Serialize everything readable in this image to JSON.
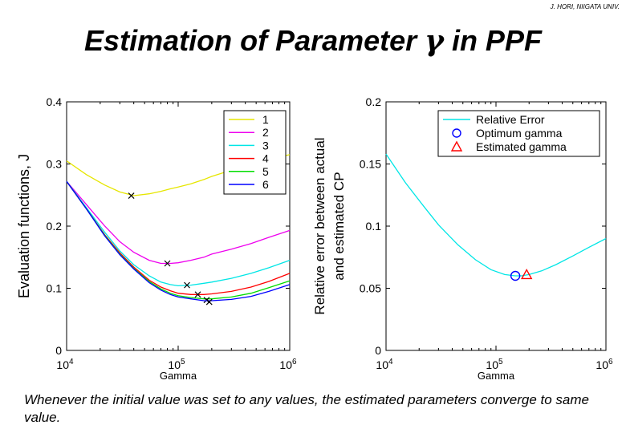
{
  "page": {
    "credit": "J. HORI, NIIGATA UNIV.",
    "title_prefix": "Estimation of Parameter ",
    "title_symbol": "γ",
    "title_suffix": " in PPF",
    "caption": "Whenever the initial value was set to any values, the estimated parameters converge to same value."
  },
  "colors": {
    "s1": "#e6e600",
    "s2": "#ee00ee",
    "s3": "#00e6e6",
    "s4": "#ff0000",
    "s5": "#00dd00",
    "s6": "#0000ff",
    "relative_error": "#00e6e6",
    "optimum": "#0000ff",
    "estimated": "#ff0000",
    "marker": "#000000"
  },
  "chart_data": [
    {
      "type": "line",
      "xscale": "log",
      "xlabel": "Gamma",
      "ylabel": "Evaluation functions, J",
      "xlim": [
        10000,
        1000000
      ],
      "ylim": [
        0,
        0.4
      ],
      "x_ticks": [
        {
          "value": 10000,
          "base": "10",
          "exp": "4"
        },
        {
          "value": 100000,
          "base": "10",
          "exp": "5"
        },
        {
          "value": 1000000,
          "base": "10",
          "exp": "6"
        }
      ],
      "y_ticks": [
        "0",
        "0.1",
        "0.2",
        "0.3",
        "0.4"
      ],
      "legend_position": "top-right",
      "x": [
        10000,
        15000,
        22000,
        30000,
        40000,
        55000,
        70000,
        85000,
        100000,
        130000,
        170000,
        200000,
        300000,
        450000,
        650000,
        1000000
      ],
      "series": [
        {
          "name": "1",
          "color_key": "s1",
          "values": [
            0.305,
            0.283,
            0.266,
            0.255,
            0.249,
            0.252,
            0.256,
            0.26,
            0.263,
            0.268,
            0.275,
            0.28,
            0.29,
            0.3,
            0.308,
            0.315
          ],
          "min_marker": {
            "x": 38000,
            "y": 0.249
          }
        },
        {
          "name": "2",
          "color_key": "s2",
          "values": [
            0.272,
            0.235,
            0.2,
            0.175,
            0.158,
            0.145,
            0.14,
            0.14,
            0.141,
            0.145,
            0.15,
            0.155,
            0.163,
            0.172,
            0.182,
            0.193
          ],
          "min_marker": {
            "x": 80000,
            "y": 0.14
          }
        },
        {
          "name": "3",
          "color_key": "s3",
          "values": [
            0.272,
            0.23,
            0.19,
            0.16,
            0.138,
            0.12,
            0.11,
            0.106,
            0.104,
            0.105,
            0.108,
            0.11,
            0.116,
            0.124,
            0.133,
            0.145
          ],
          "min_marker": {
            "x": 120000,
            "y": 0.105
          }
        },
        {
          "name": "4",
          "color_key": "s4",
          "values": [
            0.272,
            0.228,
            0.186,
            0.157,
            0.134,
            0.113,
            0.102,
            0.096,
            0.092,
            0.09,
            0.09,
            0.091,
            0.095,
            0.102,
            0.111,
            0.124
          ],
          "min_marker": {
            "x": 150000,
            "y": 0.09
          }
        },
        {
          "name": "5",
          "color_key": "s5",
          "values": [
            0.272,
            0.228,
            0.185,
            0.155,
            0.132,
            0.111,
            0.099,
            0.092,
            0.088,
            0.085,
            0.083,
            0.083,
            0.086,
            0.092,
            0.101,
            0.112
          ],
          "min_marker": {
            "x": 180000,
            "y": 0.081
          }
        },
        {
          "name": "6",
          "color_key": "s6",
          "values": [
            0.272,
            0.228,
            0.184,
            0.154,
            0.131,
            0.109,
            0.097,
            0.09,
            0.086,
            0.083,
            0.08,
            0.08,
            0.082,
            0.087,
            0.095,
            0.106
          ],
          "min_marker": {
            "x": 190000,
            "y": 0.078
          }
        }
      ]
    },
    {
      "type": "line",
      "xscale": "log",
      "xlabel": "Gamma",
      "ylabel_lines": [
        "Relative error between actual",
        "and estimated CP"
      ],
      "xlim": [
        10000,
        1000000
      ],
      "ylim": [
        0,
        0.2
      ],
      "x_ticks": [
        {
          "value": 10000,
          "base": "10",
          "exp": "4"
        },
        {
          "value": 100000,
          "base": "10",
          "exp": "5"
        },
        {
          "value": 1000000,
          "base": "10",
          "exp": "6"
        }
      ],
      "y_ticks": [
        "0",
        "0.05",
        "0.1",
        "0.15",
        "0.2"
      ],
      "legend_position": "top-right",
      "x": [
        10000,
        15000,
        22000,
        30000,
        45000,
        65000,
        90000,
        120000,
        150000,
        170000,
        200000,
        260000,
        350000,
        500000,
        700000,
        1000000
      ],
      "series": [
        {
          "name": "Relative Error",
          "color_key": "relative_error",
          "values": [
            0.158,
            0.135,
            0.116,
            0.101,
            0.085,
            0.073,
            0.065,
            0.061,
            0.06,
            0.06,
            0.061,
            0.064,
            0.069,
            0.076,
            0.083,
            0.09
          ]
        }
      ],
      "points": [
        {
          "name": "Optimum gamma",
          "marker": "circle",
          "color_key": "optimum",
          "x": 150000,
          "y": 0.06
        },
        {
          "name": "Estimated gamma",
          "marker": "triangle",
          "color_key": "estimated",
          "x": 190000,
          "y": 0.061
        }
      ]
    }
  ]
}
